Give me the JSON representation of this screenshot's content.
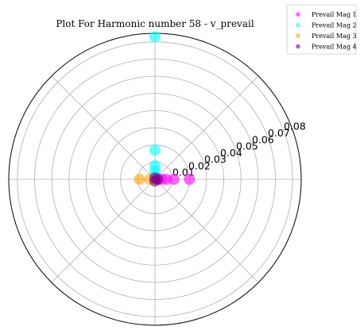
{
  "chart_data": {
    "type": "scatter",
    "projection": "polar",
    "title": "Plot For Harmonic number 58 - v_prevail",
    "r_ticks": [
      0.01,
      0.02,
      0.03,
      0.04,
      0.05,
      0.06,
      0.07,
      0.08
    ],
    "r_tick_labels": [
      "0.01",
      "0.02",
      "0.03",
      "0.04",
      "0.05",
      "0.06",
      "0.07",
      "0.08"
    ],
    "r_max": 0.085,
    "angular_gridlines_deg": [
      0,
      45,
      90,
      135,
      180,
      225,
      270,
      315
    ],
    "angular_tick_labels_shown": false,
    "grid": true,
    "legend_position": "top-right, outside plot",
    "series": [
      {
        "name": "Prevail Mag 1",
        "color": "#ff00ff",
        "points": [
          {
            "theta_deg": 0,
            "r": 0.02
          },
          {
            "theta_deg": 0,
            "r": 0.011
          },
          {
            "theta_deg": 0,
            "r": 0.0065
          },
          {
            "theta_deg": 0,
            "r": 0.004
          },
          {
            "theta_deg": 0,
            "r": 0.0015
          }
        ]
      },
      {
        "name": "Prevail Mag 2",
        "color": "#00ffff",
        "points": [
          {
            "theta_deg": 90,
            "r": 0.083
          },
          {
            "theta_deg": 90,
            "r": 0.017
          },
          {
            "theta_deg": 90,
            "r": 0.008
          },
          {
            "theta_deg": 90,
            "r": 0.005
          },
          {
            "theta_deg": 90,
            "r": 0.002
          }
        ]
      },
      {
        "name": "Prevail Mag 3",
        "color": "#ffa500",
        "points": [
          {
            "theta_deg": 180,
            "r": 0.009
          },
          {
            "theta_deg": 180,
            "r": 0.003
          }
        ]
      },
      {
        "name": "Prevail Mag 4",
        "color": "#800080",
        "points": [
          {
            "theta_deg": 0,
            "r": 0.0015
          },
          {
            "theta_deg": 270,
            "r": 0.001
          },
          {
            "theta_deg": 90,
            "r": 0.0008
          }
        ]
      }
    ]
  }
}
